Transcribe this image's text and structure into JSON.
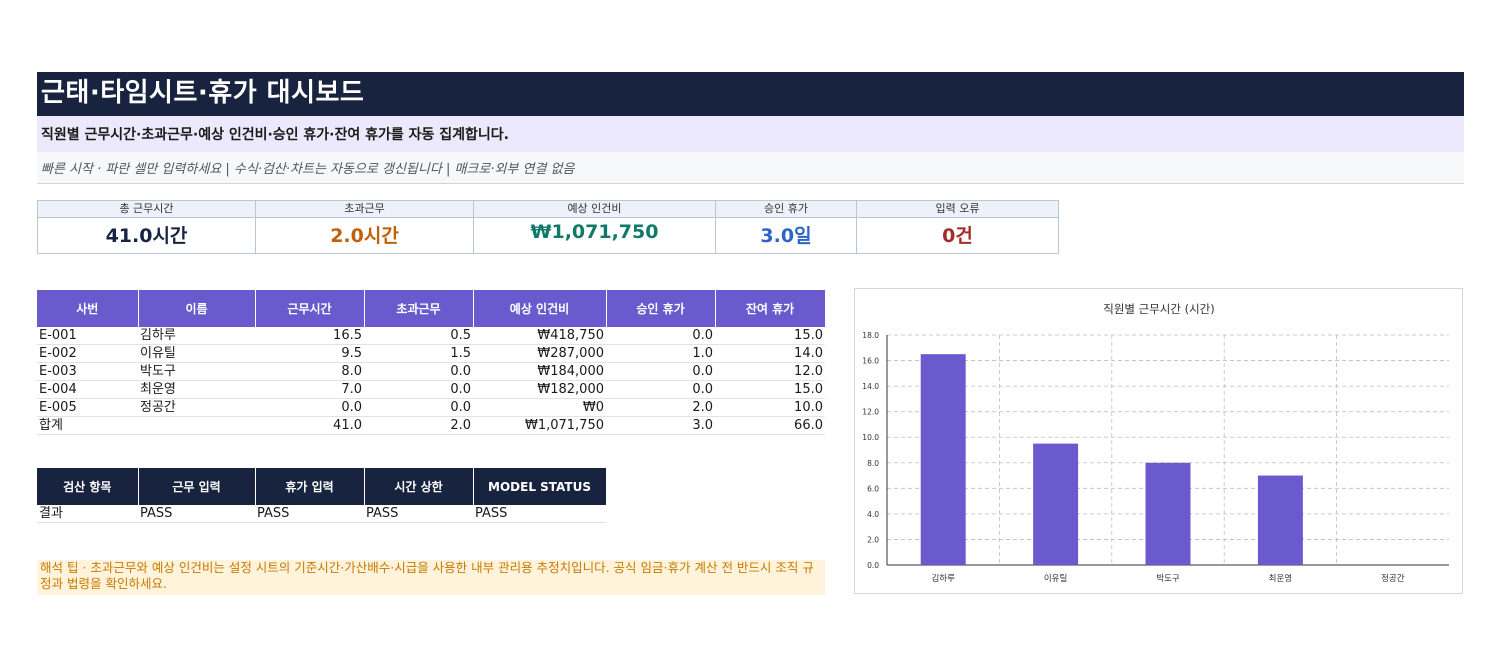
{
  "header": {
    "title": "근태·타임시트·휴가 대시보드",
    "subtitle": "직원별 근무시간·초과근무·예상 인건비·승인 휴가·잔여 휴가를 자동 집계합니다.",
    "quickstart": "빠른 시작 · 파란 셀만 입력하세요  |  수식·검산·차트는 자동으로 갱신됩니다  |  매크로·외부 연결 없음"
  },
  "kpis": [
    {
      "label": "총 근무시간",
      "value": "41.0시간",
      "color": "#17233f"
    },
    {
      "label": "초과근무",
      "value": "2.0시간",
      "color": "#c0600a"
    },
    {
      "label": "예상 인건비",
      "value": "₩1,071,750",
      "color": "#0f7a68"
    },
    {
      "label": "승인 휴가",
      "value": "3.0일",
      "color": "#2b64c8"
    },
    {
      "label": "입력 오류",
      "value": "0건",
      "color": "#a52a2a"
    }
  ],
  "employee_table": {
    "headers": [
      "사번",
      "이름",
      "근무시간",
      "초과근무",
      "예상 인건비",
      "승인 휴가",
      "잔여 휴가"
    ],
    "rows": [
      [
        "E-001",
        "김하루",
        "16.5",
        "0.5",
        "₩418,750",
        "0.0",
        "15.0"
      ],
      [
        "E-002",
        "이유틸",
        "9.5",
        "1.5",
        "₩287,000",
        "1.0",
        "14.0"
      ],
      [
        "E-003",
        "박도구",
        "8.0",
        "0.0",
        "₩184,000",
        "0.0",
        "12.0"
      ],
      [
        "E-004",
        "최운영",
        "7.0",
        "0.0",
        "₩182,000",
        "0.0",
        "15.0"
      ],
      [
        "E-005",
        "정공간",
        "0.0",
        "0.0",
        "₩0",
        "2.0",
        "10.0"
      ],
      [
        "합계",
        "",
        "41.0",
        "2.0",
        "₩1,071,750",
        "3.0",
        "66.0"
      ]
    ]
  },
  "check_table": {
    "headers": [
      "검산 항목",
      "근무 입력",
      "휴가 입력",
      "시간 상한",
      "MODEL STATUS"
    ],
    "rows": [
      [
        "결과",
        "PASS",
        "PASS",
        "PASS",
        "PASS"
      ]
    ]
  },
  "note": "해석 팁 · 초과근무와 예상 인건비는 설정 시트의 기준시간·가산배수·시급을 사용한 내부 관리용 추정치입니다. 공식 임금·휴가 계산 전 반드시 조직 규정과 법령을 확인하세요.",
  "chart_data": {
    "type": "bar",
    "title": "직원별 근무시간 (시간)",
    "categories": [
      "김하루",
      "이유틸",
      "박도구",
      "최운영",
      "정공간"
    ],
    "values": [
      16.5,
      9.5,
      8.0,
      7.0,
      0.0
    ],
    "ylim": [
      0,
      18
    ],
    "yticks": [
      "0.0",
      "2.0",
      "4.0",
      "6.0",
      "8.0",
      "10.0",
      "12.0",
      "14.0",
      "16.0",
      "18.0"
    ],
    "grid": true,
    "bar_color": "#6a5acd"
  }
}
